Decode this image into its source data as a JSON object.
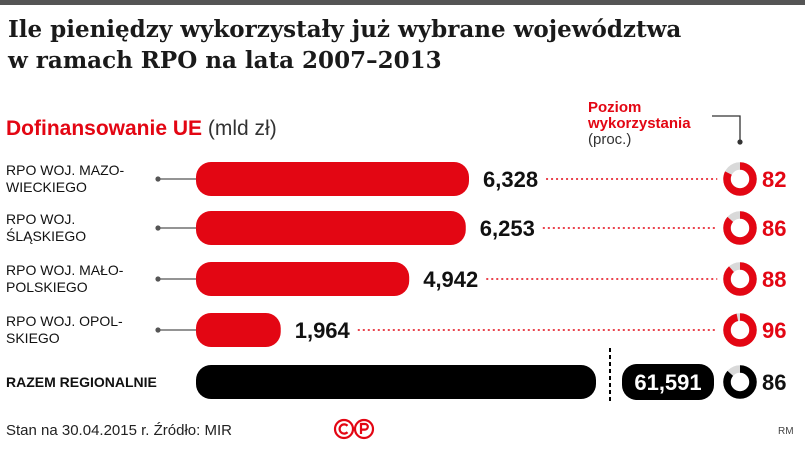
{
  "header": {
    "title_line1": "Ile pieniędzy wykorzystały już wybrane województwa",
    "title_line2": "w ramach RPO na lata 2007–2013"
  },
  "legend": {
    "main_highlight": "Dofinansowanie UE",
    "main_unit": "(mld zł)",
    "right_line1": "Poziom",
    "right_line2": "wykorzystania",
    "right_unit": "(proc.)"
  },
  "footer": {
    "source": "Stan na 30.04.2015 r.  Źródło: MIR",
    "credit": "RM"
  },
  "colors": {
    "accent": "#e30613",
    "total": "#000000",
    "track": "#d9d9d9"
  },
  "chart_data": {
    "type": "bar",
    "orientation": "horizontal",
    "categories": [
      [
        "RPO WOJ. MAZO-",
        "WIECKIEGO"
      ],
      [
        "RPO WOJ.",
        "ŚLĄSKIEGO"
      ],
      [
        "RPO WOJ. MAŁO-",
        "POLSKIEGO"
      ],
      [
        "RPO WOJ. OPOL-",
        "SKIEGO"
      ],
      [
        "RAZEM REGIONALNIE"
      ]
    ],
    "values": [
      6.328,
      6.253,
      4.942,
      1.964,
      61.591
    ],
    "value_labels": [
      "6,328",
      "6,253",
      "4,942",
      "1,964",
      "61,591"
    ],
    "utilization_percent": [
      82,
      86,
      88,
      96,
      86
    ],
    "utilization_labels": [
      "82",
      "86",
      "88",
      "96",
      "86"
    ],
    "total_index": 4
  }
}
